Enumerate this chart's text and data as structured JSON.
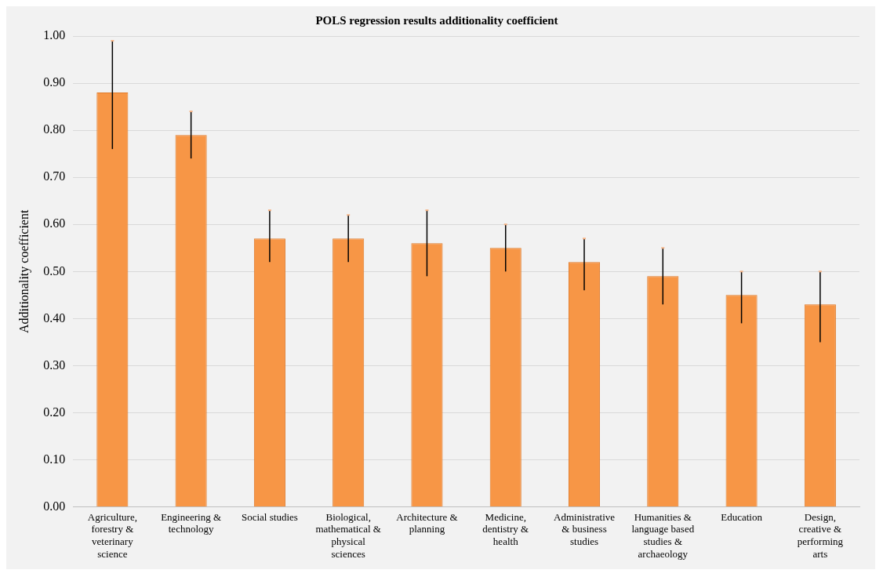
{
  "chart_data": {
    "type": "bar",
    "title": "POLS regression results additionality coefficient",
    "ylabel": "Additionality coefficient",
    "categories": [
      "Agriculture, forestry & veterinary science",
      "Engineering & technology",
      "Social studies",
      "Biological, mathematical & physical sciences",
      "Architecture & planning",
      "Medicine, dentistry & health",
      "Administrative & business studies",
      "Humanities & language based studies & archaeology",
      "Education",
      "Design, creative & performing arts"
    ],
    "values": [
      0.88,
      0.79,
      0.57,
      0.57,
      0.56,
      0.55,
      0.52,
      0.49,
      0.45,
      0.43
    ],
    "errors": [
      [
        0.76,
        0.99
      ],
      [
        0.74,
        0.84
      ],
      [
        0.52,
        0.63
      ],
      [
        0.52,
        0.62
      ],
      [
        0.49,
        0.63
      ],
      [
        0.5,
        0.6
      ],
      [
        0.46,
        0.57
      ],
      [
        0.43,
        0.55
      ],
      [
        0.39,
        0.5
      ],
      [
        0.35,
        0.5
      ]
    ],
    "color": "#f79646",
    "ylim": [
      0,
      1
    ],
    "yticks": [
      {
        "value": 0,
        "label": "0.00"
      },
      {
        "value": 0.1,
        "label": "0.10"
      },
      {
        "value": 0.2,
        "label": "0.20"
      },
      {
        "value": 0.3,
        "label": "0.30"
      },
      {
        "value": 0.4,
        "label": "0.40"
      },
      {
        "value": 0.5,
        "label": "0.50"
      },
      {
        "value": 0.6,
        "label": "0.60"
      },
      {
        "value": 0.7,
        "label": "0.70"
      },
      {
        "value": 0.8,
        "label": "0.80"
      },
      {
        "value": 0.9,
        "label": "0.90"
      },
      {
        "value": 1,
        "label": "1.00"
      }
    ],
    "grid": "y",
    "legend": false
  }
}
